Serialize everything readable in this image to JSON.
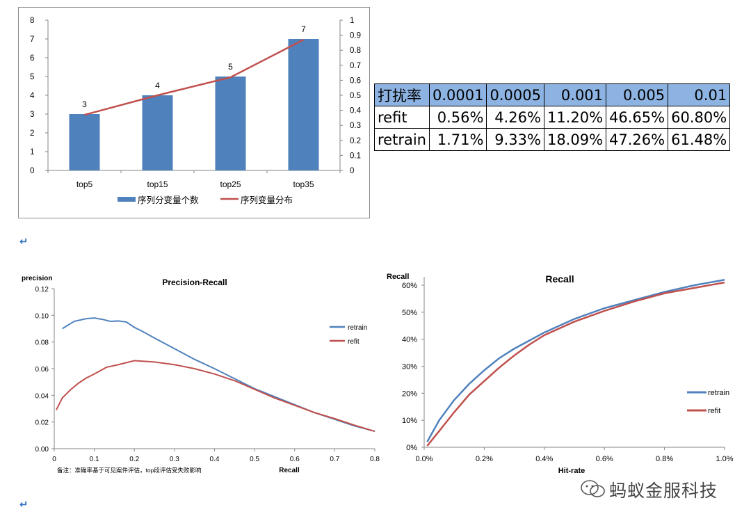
{
  "colors": {
    "bar": "#4f81bd",
    "line": "#c0504d",
    "retrain": "#4f81bd",
    "refit": "#c0504d",
    "table_header": "#8db3e2"
  },
  "chart_data": [
    {
      "type": "bar",
      "categories": [
        "top5",
        "top15",
        "top25",
        "top35"
      ],
      "series": [
        {
          "name": "序列分变量个数",
          "type": "bar",
          "axis": "left",
          "values": [
            3,
            4,
            5,
            7
          ]
        },
        {
          "name": "序列变量分布",
          "type": "line",
          "axis": "right",
          "values": [
            0.37,
            0.5,
            0.62,
            0.87
          ]
        }
      ],
      "ylim_left": [
        0,
        8
      ],
      "yticks_left": [
        "0",
        "1",
        "2",
        "3",
        "4",
        "5",
        "6",
        "7",
        "8"
      ],
      "ylim_right": [
        0,
        1
      ],
      "yticks_right": [
        "0",
        "0.1",
        "0.2",
        "0.3",
        "0.4",
        "0.5",
        "0.6",
        "0.7",
        "0.8",
        "0.9",
        "1"
      ],
      "data_labels": [
        "3",
        "4",
        "5",
        "7"
      ],
      "title": "",
      "xlabel": "",
      "ylabel": "",
      "legend": "bottom",
      "grid": false
    },
    {
      "type": "line",
      "title": "Precision-Recall",
      "xlabel": "Recall",
      "ylabel": "precision",
      "xlim": [
        0,
        0.8
      ],
      "ylim": [
        0,
        0.12
      ],
      "xticks": [
        "0",
        "0.1",
        "0.2",
        "0.3",
        "0.4",
        "0.5",
        "0.6",
        "0.7",
        "0.8"
      ],
      "yticks": [
        "0.00",
        "0.02",
        "0.04",
        "0.06",
        "0.08",
        "0.10",
        "0.12"
      ],
      "legend": "right",
      "grid": false,
      "series": [
        {
          "name": "retrain",
          "x": [
            0.02,
            0.05,
            0.08,
            0.1,
            0.12,
            0.14,
            0.16,
            0.18,
            0.2,
            0.22,
            0.25,
            0.3,
            0.35,
            0.4,
            0.45,
            0.5,
            0.55,
            0.6,
            0.65,
            0.7,
            0.75,
            0.8
          ],
          "y": [
            0.09,
            0.0955,
            0.0975,
            0.098,
            0.097,
            0.0955,
            0.0958,
            0.095,
            0.091,
            0.088,
            0.083,
            0.075,
            0.067,
            0.06,
            0.0525,
            0.045,
            0.039,
            0.033,
            0.027,
            0.022,
            0.017,
            0.013
          ]
        },
        {
          "name": "refit",
          "x": [
            0.005,
            0.02,
            0.04,
            0.06,
            0.08,
            0.1,
            0.13,
            0.16,
            0.2,
            0.25,
            0.3,
            0.35,
            0.4,
            0.45,
            0.5,
            0.55,
            0.6,
            0.65,
            0.7,
            0.75,
            0.8
          ],
          "y": [
            0.029,
            0.038,
            0.044,
            0.049,
            0.053,
            0.056,
            0.061,
            0.063,
            0.066,
            0.065,
            0.063,
            0.06,
            0.056,
            0.051,
            0.0445,
            0.038,
            0.0325,
            0.027,
            0.0225,
            0.0175,
            0.013
          ]
        }
      ]
    },
    {
      "type": "line",
      "title": "Recall",
      "xlabel": "Hit-rate",
      "ylabel": "Recall",
      "xlim": [
        0,
        1
      ],
      "ylim": [
        0,
        60
      ],
      "xticks": [
        "0.0%",
        "0.2%",
        "0.4%",
        "0.6%",
        "0.8%",
        "1.0%"
      ],
      "yticks": [
        "0%",
        "10%",
        "20%",
        "30%",
        "40%",
        "50%",
        "60%"
      ],
      "legend": "right",
      "grid": false,
      "series": [
        {
          "name": "retrain",
          "x": [
            0.01,
            0.05,
            0.1,
            0.15,
            0.2,
            0.25,
            0.3,
            0.35,
            0.4,
            0.5,
            0.6,
            0.7,
            0.8,
            0.9,
            1.0
          ],
          "y": [
            2,
            10,
            17.5,
            23.5,
            28.5,
            33,
            36.5,
            39.5,
            42.5,
            47.5,
            51.5,
            54.5,
            57.5,
            60,
            62
          ]
        },
        {
          "name": "refit",
          "x": [
            0.01,
            0.05,
            0.1,
            0.15,
            0.2,
            0.25,
            0.3,
            0.35,
            0.4,
            0.5,
            0.6,
            0.7,
            0.8,
            0.9,
            1.0
          ],
          "y": [
            0.5,
            6,
            13,
            19.5,
            24.5,
            29.5,
            34,
            38,
            41.5,
            46.5,
            50.5,
            54,
            57,
            59,
            61
          ]
        }
      ],
      "annotation": ""
    }
  ],
  "table": {
    "header": [
      "打扰率",
      "0.0001",
      "0.0005",
      "0.001",
      "0.005",
      "0.01"
    ],
    "rows": [
      [
        "refit",
        "0.56%",
        "4.26%",
        "11.20%",
        "46.65%",
        "60.80%"
      ],
      [
        "retrain",
        "1.71%",
        "9.33%",
        "18.09%",
        "47.26%",
        "61.48%"
      ]
    ]
  },
  "pr_note": "备注：准确率基于可见案件评估，top段评估受失败影响",
  "return_mark": "↵",
  "watermark": "蚂蚁金服科技"
}
